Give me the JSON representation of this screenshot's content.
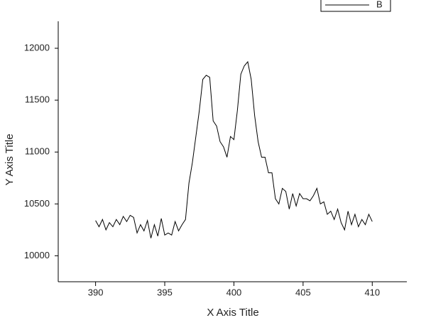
{
  "chart_data": {
    "type": "line",
    "x_label": "X Axis Title",
    "y_label": "Y Axis Title",
    "x": [
      390,
      390.25,
      390.5,
      390.75,
      391,
      391.25,
      391.5,
      391.75,
      392,
      392.25,
      392.5,
      392.75,
      393,
      393.25,
      393.5,
      393.75,
      394,
      394.25,
      394.5,
      394.75,
      395,
      395.25,
      395.5,
      395.75,
      396,
      396.25,
      396.5,
      396.75,
      397,
      397.25,
      397.5,
      397.75,
      398,
      398.25,
      398.5,
      398.75,
      399,
      399.25,
      399.5,
      399.75,
      400,
      400.25,
      400.5,
      400.75,
      401,
      401.25,
      401.5,
      401.75,
      402,
      402.25,
      402.5,
      402.75,
      403,
      403.25,
      403.5,
      403.75,
      404,
      404.25,
      404.5,
      404.75,
      405,
      405.25,
      405.5,
      405.75,
      406,
      406.25,
      406.5,
      406.75,
      407,
      407.25,
      407.5,
      407.75,
      408,
      408.25,
      408.5,
      408.75,
      409,
      409.25,
      409.5,
      409.75,
      410
    ],
    "series": [
      {
        "name": "B",
        "color": "#000000",
        "values": [
          10340,
          10280,
          10350,
          10250,
          10320,
          10280,
          10350,
          10300,
          10380,
          10330,
          10390,
          10370,
          10220,
          10300,
          10240,
          10340,
          10170,
          10300,
          10190,
          10360,
          10200,
          10220,
          10200,
          10330,
          10240,
          10300,
          10350,
          10700,
          10900,
          11150,
          11400,
          11700,
          11740,
          11720,
          11300,
          11250,
          11100,
          11050,
          10950,
          11150,
          11120,
          11400,
          11750,
          11830,
          11870,
          11700,
          11350,
          11100,
          10950,
          10950,
          10800,
          10800,
          10550,
          10500,
          10650,
          10620,
          10450,
          10600,
          10480,
          10600,
          10550,
          10550,
          10530,
          10580,
          10650,
          10500,
          10520,
          10400,
          10430,
          10350,
          10450,
          10320,
          10250,
          10430,
          10300,
          10400,
          10280,
          10350,
          10300,
          10400,
          10330
        ]
      }
    ],
    "xlim": [
      387.3,
      412.5
    ],
    "ylim": [
      9750,
      12260
    ],
    "xticks": [
      390,
      395,
      400,
      405,
      410
    ],
    "yticks": [
      10000,
      10500,
      11000,
      11500,
      12000
    ],
    "legend": "upper right"
  }
}
